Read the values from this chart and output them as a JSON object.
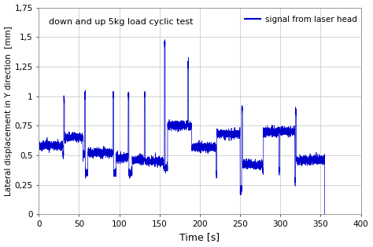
{
  "xlabel": "Time [s]",
  "ylabel": "Lateral displacement in Y direction  [mm]",
  "xlim": [
    0,
    400
  ],
  "ylim": [
    0,
    1.75
  ],
  "xticks": [
    0,
    50,
    100,
    150,
    200,
    250,
    300,
    350,
    400
  ],
  "yticks": [
    0,
    0.25,
    0.5,
    0.75,
    1.0,
    1.25,
    1.5,
    1.75
  ],
  "ytick_labels": [
    "0",
    "0,25",
    "0,5",
    "0,75",
    "1",
    "1,25",
    "1,5",
    "1,75"
  ],
  "line_color": "#0000cc",
  "legend_label": "signal from laser head",
  "annotation_text": "down and up 5kg load cyclic test",
  "background_color": "#ffffff",
  "grid_color": "#cccccc",
  "noise_std": 0.018,
  "segments": [
    {
      "t_start": 0,
      "t_end": 30,
      "level": 0.58
    },
    {
      "t_start": 30,
      "t_end": 31,
      "level": 0.5
    },
    {
      "t_start": 31,
      "t_end": 32,
      "level": 0.97
    },
    {
      "t_start": 32,
      "t_end": 55,
      "level": 0.65
    },
    {
      "t_start": 55,
      "t_end": 57,
      "level": 0.5
    },
    {
      "t_start": 57,
      "t_end": 58,
      "level": 1.01
    },
    {
      "t_start": 58,
      "t_end": 61,
      "level": 0.35
    },
    {
      "t_start": 61,
      "t_end": 90,
      "level": 0.52
    },
    {
      "t_start": 90,
      "t_end": 92,
      "level": 0.52
    },
    {
      "t_start": 92,
      "t_end": 93,
      "level": 1.01
    },
    {
      "t_start": 93,
      "t_end": 96,
      "level": 0.35
    },
    {
      "t_start": 96,
      "t_end": 110,
      "level": 0.48
    },
    {
      "t_start": 110,
      "t_end": 111,
      "level": 0.48
    },
    {
      "t_start": 111,
      "t_end": 112,
      "level": 1.01
    },
    {
      "t_start": 112,
      "t_end": 116,
      "level": 0.35
    },
    {
      "t_start": 116,
      "t_end": 130,
      "level": 0.46
    },
    {
      "t_start": 130,
      "t_end": 131,
      "level": 0.46
    },
    {
      "t_start": 131,
      "t_end": 132,
      "level": 1.01
    },
    {
      "t_start": 132,
      "t_end": 155,
      "level": 0.45
    },
    {
      "t_start": 155,
      "t_end": 156,
      "level": 0.4
    },
    {
      "t_start": 156,
      "t_end": 157,
      "level": 1.45
    },
    {
      "t_start": 157,
      "t_end": 160,
      "level": 0.4
    },
    {
      "t_start": 160,
      "t_end": 185,
      "level": 0.75
    },
    {
      "t_start": 185,
      "t_end": 186,
      "level": 1.27
    },
    {
      "t_start": 186,
      "t_end": 190,
      "level": 0.75
    },
    {
      "t_start": 190,
      "t_end": 191,
      "level": 0.57
    },
    {
      "t_start": 191,
      "t_end": 220,
      "level": 0.57
    },
    {
      "t_start": 220,
      "t_end": 221,
      "level": 0.35
    },
    {
      "t_start": 221,
      "t_end": 222,
      "level": 0.7
    },
    {
      "t_start": 222,
      "t_end": 250,
      "level": 0.68
    },
    {
      "t_start": 250,
      "t_end": 251,
      "level": 0.2
    },
    {
      "t_start": 251,
      "t_end": 252,
      "level": 0.2
    },
    {
      "t_start": 252,
      "t_end": 253,
      "level": 0.9
    },
    {
      "t_start": 253,
      "t_end": 278,
      "level": 0.42
    },
    {
      "t_start": 278,
      "t_end": 279,
      "level": 0.37
    },
    {
      "t_start": 279,
      "t_end": 280,
      "level": 0.7
    },
    {
      "t_start": 280,
      "t_end": 298,
      "level": 0.7
    },
    {
      "t_start": 298,
      "t_end": 299,
      "level": 0.37
    },
    {
      "t_start": 299,
      "t_end": 300,
      "level": 0.7
    },
    {
      "t_start": 300,
      "t_end": 318,
      "level": 0.7
    },
    {
      "t_start": 318,
      "t_end": 319,
      "level": 0.28
    },
    {
      "t_start": 319,
      "t_end": 320,
      "level": 0.87
    },
    {
      "t_start": 320,
      "t_end": 355,
      "level": 0.46
    }
  ]
}
